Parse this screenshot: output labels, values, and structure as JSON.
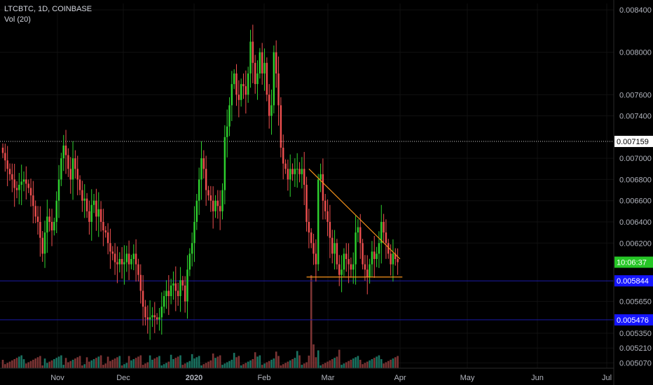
{
  "header": {
    "symbol_line": "LTCBTC, 1D, COINBASE",
    "volume_line": "Vol (20)"
  },
  "chart_data": {
    "type": "candlestick",
    "symbol": "LTCBTC",
    "interval": "1D",
    "exchange": "COINBASE",
    "ylim": [
      0.00502,
      0.00846
    ],
    "y_ticks": [
      "0.008400",
      "0.008000",
      "0.007600",
      "0.007400",
      "0.007000",
      "0.006800",
      "0.006600",
      "0.006400",
      "0.006200",
      "0.005650",
      "0.005350",
      "0.005210",
      "0.005070"
    ],
    "x_ticks": [
      "Nov",
      "Dec",
      "2020",
      "Feb",
      "Mar",
      "Apr",
      "May",
      "Jun",
      "Jul"
    ],
    "price_tags": [
      {
        "label": "0.007159",
        "value": 0.007159,
        "bg": "#ffffff",
        "fg": "#000000"
      },
      {
        "label": "10:06:37",
        "value": 0.00602,
        "bg": "#26c626",
        "fg": "#ffffff"
      },
      {
        "label": "0.005844",
        "value": 0.005844,
        "bg": "#1515ff",
        "fg": "#ffffff"
      },
      {
        "label": "0.005476",
        "value": 0.005476,
        "bg": "#1515ff",
        "fg": "#ffffff"
      }
    ],
    "horizontal_lines": [
      {
        "value": 0.007159,
        "color": "#cfcfcf",
        "style": "dotted"
      },
      {
        "value": 0.005844,
        "color": "#1a1aa6",
        "style": "solid"
      },
      {
        "value": 0.005476,
        "color": "#1a1aa6",
        "style": "solid"
      }
    ],
    "trendlines": [
      {
        "from": {
          "day": 131,
          "value": 0.0069
        },
        "to": {
          "day": 170,
          "value": 0.00605
        },
        "color": "#f7931a"
      },
      {
        "from": {
          "day": 130,
          "value": 0.00588
        },
        "to": {
          "day": 171,
          "value": 0.00588
        },
        "color": "#f7931a"
      }
    ],
    "candles_close": [
      0.00705,
      0.00698,
      0.0069,
      0.00685,
      0.0068,
      0.00672,
      0.0067,
      0.00675,
      0.00678,
      0.0068,
      0.00676,
      0.00672,
      0.00665,
      0.00655,
      0.00645,
      0.0064,
      0.00625,
      0.0061,
      0.0063,
      0.00645,
      0.0064,
      0.00632,
      0.0064,
      0.0066,
      0.0068,
      0.007,
      0.00712,
      0.00703,
      0.0069,
      0.0068,
      0.007,
      0.0069,
      0.0068,
      0.0067,
      0.0066,
      0.00662,
      0.0065,
      0.0064,
      0.00656,
      0.0066,
      0.00645,
      0.00652,
      0.0064,
      0.00632,
      0.0063,
      0.0062,
      0.00612,
      0.0061,
      0.00602,
      0.006,
      0.00605,
      0.006,
      0.00602,
      0.0061,
      0.006,
      0.00605,
      0.0061,
      0.006,
      0.0059,
      0.00575,
      0.0056,
      0.0055,
      0.00548,
      0.0055,
      0.00552,
      0.0055,
      0.00548,
      0.0055,
      0.0056,
      0.0057,
      0.00575,
      0.0057,
      0.0058,
      0.00582,
      0.00575,
      0.0057,
      0.00585,
      0.0058,
      0.00565,
      0.00595,
      0.0061,
      0.0062,
      0.0064,
      0.0066,
      0.0068,
      0.007,
      0.0069,
      0.0067,
      0.00665,
      0.0066,
      0.0065,
      0.0066,
      0.00655,
      0.0065,
      0.0067,
      0.0072,
      0.0073,
      0.0075,
      0.0077,
      0.0078,
      0.0076,
      0.00755,
      0.0077,
      0.00768,
      0.0076,
      0.0078,
      0.0081,
      0.0079,
      0.0077,
      0.0078,
      0.008,
      0.0078,
      0.0079,
      0.0076,
      0.0074,
      0.0075,
      0.008,
      0.0078,
      0.0075,
      0.0071,
      0.00695,
      0.0069,
      0.0068,
      0.0069,
      0.00685,
      0.0069,
      0.0069,
      0.00685,
      0.0069,
      0.00675,
      0.0064,
      0.0063,
      0.0062,
      0.0061,
      0.006,
      0.0068,
      0.00685,
      0.0066,
      0.0065,
      0.0064,
      0.00625,
      0.0061,
      0.0062,
      0.006,
      0.0059,
      0.00595,
      0.0061,
      0.00605,
      0.006,
      0.00595,
      0.006,
      0.0063,
      0.00635,
      0.0062,
      0.006,
      0.00595,
      0.00588,
      0.006,
      0.00612,
      0.00605,
      0.0061,
      0.0062,
      0.0064,
      0.0063,
      0.0062,
      0.0061,
      0.006,
      0.0061,
      0.00605,
      0.00602
    ],
    "volume_max_index": 132
  }
}
